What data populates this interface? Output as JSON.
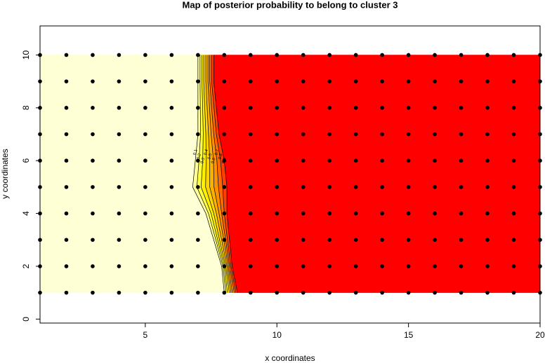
{
  "chart_data": {
    "type": "contour",
    "title": "Map of posterior probability to belong to cluster  3",
    "x_label": "x coordinates",
    "y_label": "y coordinates",
    "xlim": [
      1,
      20
    ],
    "ylim": [
      -0.15,
      11.1
    ],
    "xticks": [
      5,
      10,
      15,
      20
    ],
    "yticks": [
      0,
      2,
      4,
      6,
      8,
      10
    ],
    "points": {
      "x": [
        1,
        2,
        3,
        4,
        5,
        6,
        7,
        8,
        9,
        10,
        11,
        12,
        13,
        14,
        15,
        16,
        17,
        18,
        19,
        20
      ],
      "y": [
        1,
        2,
        3,
        4,
        5,
        6,
        7,
        8,
        9,
        10
      ]
    },
    "contour_y": [
      1,
      2,
      3,
      4,
      5,
      6,
      7,
      8,
      9,
      10
    ],
    "band_colors": [
      "#FFFFD5",
      "#FFFF99",
      "#FFFF40",
      "#FFF000",
      "#FFD400",
      "#FFB000",
      "#FF9000",
      "#FF6A00",
      "#FF4000",
      "#FF0000"
    ],
    "contours": [
      {
        "level": 0.1,
        "x": [
          8.0,
          7.9,
          7.6,
          7.3,
          6.8,
          6.9,
          7.0,
          7.0,
          7.0,
          7.0
        ]
      },
      {
        "level": 0.2,
        "x": [
          8.06,
          7.95,
          7.68,
          7.4,
          6.96,
          7.04,
          7.1,
          7.09,
          7.08,
          7.08
        ]
      },
      {
        "level": 0.3,
        "x": [
          8.12,
          8.0,
          7.75,
          7.5,
          7.12,
          7.18,
          7.2,
          7.18,
          7.15,
          7.15
        ]
      },
      {
        "level": 0.4,
        "x": [
          8.19,
          8.05,
          7.82,
          7.6,
          7.29,
          7.31,
          7.3,
          7.26,
          7.22,
          7.22
        ]
      },
      {
        "level": 0.5,
        "x": [
          8.25,
          8.1,
          7.9,
          7.7,
          7.45,
          7.45,
          7.4,
          7.35,
          7.3,
          7.3
        ]
      },
      {
        "level": 0.6,
        "x": [
          8.31,
          8.15,
          7.98,
          7.8,
          7.61,
          7.59,
          7.5,
          7.44,
          7.38,
          7.38
        ]
      },
      {
        "level": 0.7,
        "x": [
          8.38,
          8.2,
          8.05,
          7.9,
          7.78,
          7.72,
          7.6,
          7.52,
          7.45,
          7.45
        ]
      },
      {
        "level": 0.8,
        "x": [
          8.44,
          8.25,
          8.12,
          8.0,
          7.94,
          7.86,
          7.7,
          7.61,
          7.52,
          7.52
        ]
      },
      {
        "level": 0.9,
        "x": [
          8.5,
          8.3,
          8.2,
          8.1,
          8.1,
          8.0,
          7.8,
          7.7,
          7.6,
          7.6
        ]
      }
    ]
  }
}
